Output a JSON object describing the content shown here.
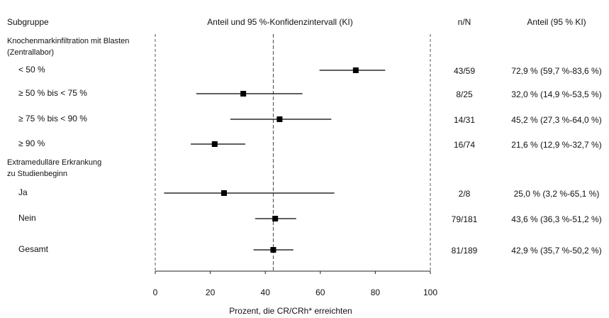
{
  "chart_data": {
    "type": "forest",
    "headers": {
      "subgroup": "Subgruppe",
      "plot": "Anteil und 95 %-Konfidenzintervall (KI)",
      "n": "n/N",
      "ci": "Anteil (95 % KI)"
    },
    "xlabel": "Prozent, die CR/CRh* erreichten",
    "xlim": [
      0,
      100
    ],
    "xticks": [
      0,
      20,
      40,
      60,
      80,
      100
    ],
    "color": "#000000",
    "rows": [
      {
        "label": [
          "Knochenmarkinfiltration mit Blasten",
          "(Zentrallabor)"
        ]
      },
      {
        "label": [
          "< 50 %"
        ],
        "n": "43/59",
        "value": 72.9,
        "lower": 59.7,
        "upper": 83.6,
        "value_label": "72,9 % (59,7 %-83,6 %)"
      },
      {
        "label": [
          "≥ 50 % bis < 75 %"
        ],
        "n": "8/25",
        "value": 32.0,
        "lower": 14.9,
        "upper": 53.5,
        "value_label": "32,0 % (14,9 %-53,5 %)"
      },
      {
        "label": [
          "≥ 75 % bis < 90 %"
        ],
        "n": "14/31",
        "value": 45.2,
        "lower": 27.3,
        "upper": 64.0,
        "value_label": "45,2 % (27,3 %-64,0 %)"
      },
      {
        "label": [
          "≥ 90 %"
        ],
        "n": "16/74",
        "value": 21.6,
        "lower": 12.9,
        "upper": 32.7,
        "value_label": "21,6 % (12,9 %-32,7 %)"
      },
      {
        "label": [
          "Extramedulläre Erkrankung",
          "zu Studienbeginn"
        ]
      },
      {
        "label": [
          "Ja"
        ],
        "n": "2/8",
        "value": 25.0,
        "lower": 3.2,
        "upper": 65.1,
        "value_label": "25,0 % (3,2 %-65,1 %)"
      },
      {
        "label": [
          "Nein"
        ],
        "n": "79/181",
        "value": 43.6,
        "lower": 36.3,
        "upper": 51.2,
        "value_label": "43,6 % (36,3 %-51,2 %)"
      },
      {
        "label": [
          "Gesamt"
        ],
        "n": "81/189",
        "value": 42.9,
        "lower": 35.7,
        "upper": 50.2,
        "value_label": "42,9 % (35,7 %-50,2 %)"
      }
    ]
  }
}
